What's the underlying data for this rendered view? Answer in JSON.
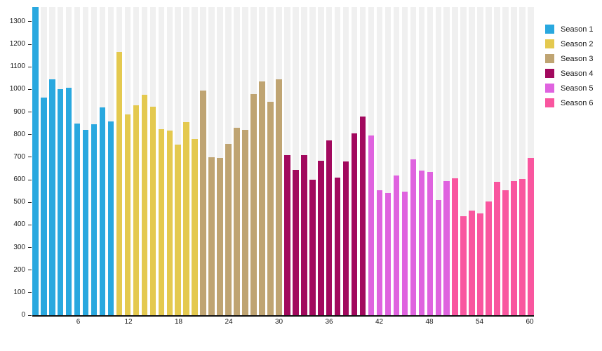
{
  "chart_data": {
    "type": "bar",
    "title": "",
    "xlabel": "",
    "ylabel": "",
    "x_range": [
      1,
      60
    ],
    "ylim": [
      0,
      1365
    ],
    "yticks": [
      0,
      100,
      200,
      300,
      400,
      500,
      600,
      700,
      800,
      900,
      1000,
      1100,
      1200,
      1300
    ],
    "xticks": [
      6,
      12,
      18,
      24,
      30,
      36,
      42,
      48,
      54,
      60
    ],
    "legend_position": "right",
    "grid": "none",
    "background_stripes": true,
    "stripe_color": "#f0f0f0",
    "axis_color": "#111111",
    "series": [
      {
        "name": "Season 1",
        "color": "#29A8DF",
        "values": [
          1365,
          965,
          1045,
          1002,
          1008,
          850,
          820,
          845,
          920,
          858
        ]
      },
      {
        "name": "Season 2",
        "color": "#E4C94F",
        "values": [
          1165,
          890,
          930,
          975,
          925,
          825,
          818,
          755,
          855,
          782
        ]
      },
      {
        "name": "Season 3",
        "color": "#BFA472",
        "values": [
          995,
          700,
          697,
          760,
          830,
          820,
          980,
          1035,
          945,
          1045
        ]
      },
      {
        "name": "Season 4",
        "color": "#A2095E",
        "values": [
          710,
          645,
          708,
          600,
          685,
          775,
          610,
          680,
          805,
          880
        ]
      },
      {
        "name": "Season 5",
        "color": "#DF63DF",
        "values": [
          795,
          555,
          540,
          620,
          548,
          690,
          640,
          635,
          510,
          593
        ]
      },
      {
        "name": "Season 6",
        "color": "#F9569F",
        "values": [
          605,
          438,
          463,
          450,
          503,
          590,
          553,
          595,
          603,
          695
        ]
      }
    ]
  }
}
